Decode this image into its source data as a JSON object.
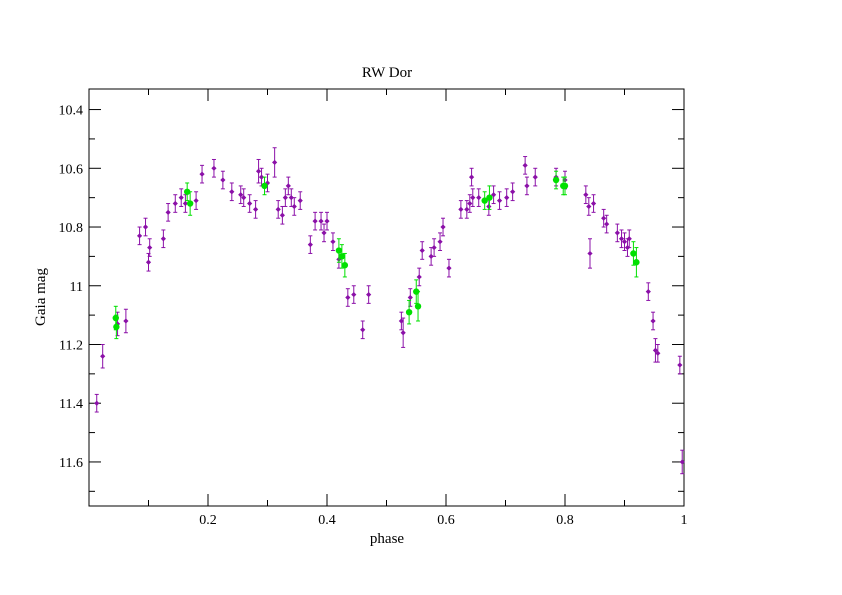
{
  "chart_data": {
    "type": "scatter",
    "title": "RW Dor",
    "xlabel": "phase",
    "ylabel": "Gaia mag",
    "xlim": [
      0.0,
      1.0
    ],
    "ylim": [
      11.75,
      10.33
    ],
    "y_inverted": true,
    "grid": false,
    "legend": "none",
    "x_major_ticks": [
      0.2,
      0.4,
      0.6,
      0.8,
      1
    ],
    "x_tick_labels": [
      "0.2",
      "0.4",
      "0.6",
      "0.8",
      "1"
    ],
    "x_minor_ticks": [
      0.1,
      0.3,
      0.5,
      0.7,
      0.9
    ],
    "y_major_ticks": [
      10.4,
      10.6,
      10.8,
      11.0,
      11.2,
      11.4,
      11.6
    ],
    "y_tick_labels": [
      "10.4",
      "10.6",
      "10.8",
      "11",
      "11.2",
      "11.4",
      "11.6"
    ],
    "y_minor_ticks": [
      10.5,
      10.7,
      10.9,
      11.1,
      11.3,
      11.5,
      11.7
    ],
    "series": [
      {
        "color": "#8b10a8",
        "marker": "diamond",
        "points": [
          [
            0.013,
            11.4,
            0.03
          ],
          [
            0.023,
            11.24,
            0.04
          ],
          [
            0.048,
            11.13,
            0.04
          ],
          [
            0.062,
            11.12,
            0.04
          ],
          [
            0.085,
            10.83,
            0.03
          ],
          [
            0.095,
            10.8,
            0.03
          ],
          [
            0.1,
            10.92,
            0.03
          ],
          [
            0.102,
            10.87,
            0.03
          ],
          [
            0.125,
            10.84,
            0.03
          ],
          [
            0.133,
            10.75,
            0.03
          ],
          [
            0.145,
            10.72,
            0.03
          ],
          [
            0.155,
            10.7,
            0.03
          ],
          [
            0.162,
            10.72,
            0.03
          ],
          [
            0.18,
            10.71,
            0.03
          ],
          [
            0.19,
            10.62,
            0.03
          ],
          [
            0.21,
            10.6,
            0.03
          ],
          [
            0.225,
            10.64,
            0.03
          ],
          [
            0.24,
            10.68,
            0.03
          ],
          [
            0.255,
            10.69,
            0.03
          ],
          [
            0.26,
            10.7,
            0.03
          ],
          [
            0.27,
            10.72,
            0.03
          ],
          [
            0.28,
            10.74,
            0.03
          ],
          [
            0.285,
            10.61,
            0.04
          ],
          [
            0.29,
            10.63,
            0.03
          ],
          [
            0.3,
            10.65,
            0.03
          ],
          [
            0.312,
            10.58,
            0.05
          ],
          [
            0.318,
            10.74,
            0.03
          ],
          [
            0.325,
            10.76,
            0.03
          ],
          [
            0.33,
            10.7,
            0.03
          ],
          [
            0.335,
            10.66,
            0.03
          ],
          [
            0.34,
            10.7,
            0.03
          ],
          [
            0.345,
            10.73,
            0.03
          ],
          [
            0.355,
            10.71,
            0.03
          ],
          [
            0.372,
            10.86,
            0.03
          ],
          [
            0.38,
            10.78,
            0.03
          ],
          [
            0.39,
            10.78,
            0.03
          ],
          [
            0.395,
            10.82,
            0.03
          ],
          [
            0.4,
            10.78,
            0.03
          ],
          [
            0.41,
            10.85,
            0.03
          ],
          [
            0.42,
            10.91,
            0.03
          ],
          [
            0.435,
            11.04,
            0.03
          ],
          [
            0.445,
            11.03,
            0.03
          ],
          [
            0.46,
            11.15,
            0.03
          ],
          [
            0.47,
            11.03,
            0.03
          ],
          [
            0.525,
            11.12,
            0.03
          ],
          [
            0.528,
            11.16,
            0.05
          ],
          [
            0.54,
            11.04,
            0.03
          ],
          [
            0.555,
            10.97,
            0.03
          ],
          [
            0.56,
            10.88,
            0.03
          ],
          [
            0.575,
            10.9,
            0.03
          ],
          [
            0.58,
            10.87,
            0.03
          ],
          [
            0.59,
            10.85,
            0.03
          ],
          [
            0.595,
            10.8,
            0.03
          ],
          [
            0.605,
            10.94,
            0.03
          ],
          [
            0.625,
            10.74,
            0.03
          ],
          [
            0.635,
            10.74,
            0.03
          ],
          [
            0.64,
            10.72,
            0.03
          ],
          [
            0.643,
            10.63,
            0.03
          ],
          [
            0.645,
            10.7,
            0.03
          ],
          [
            0.655,
            10.7,
            0.03
          ],
          [
            0.672,
            10.73,
            0.03
          ],
          [
            0.68,
            10.69,
            0.03
          ],
          [
            0.69,
            10.71,
            0.03
          ],
          [
            0.702,
            10.7,
            0.03
          ],
          [
            0.712,
            10.68,
            0.03
          ],
          [
            0.733,
            10.59,
            0.03
          ],
          [
            0.736,
            10.66,
            0.03
          ],
          [
            0.75,
            10.63,
            0.03
          ],
          [
            0.785,
            10.63,
            0.03
          ],
          [
            0.8,
            10.64,
            0.03
          ],
          [
            0.835,
            10.69,
            0.03
          ],
          [
            0.84,
            10.73,
            0.03
          ],
          [
            0.842,
            10.89,
            0.05
          ],
          [
            0.848,
            10.72,
            0.03
          ],
          [
            0.865,
            10.77,
            0.03
          ],
          [
            0.87,
            10.79,
            0.03
          ],
          [
            0.888,
            10.82,
            0.03
          ],
          [
            0.895,
            10.84,
            0.03
          ],
          [
            0.9,
            10.85,
            0.03
          ],
          [
            0.905,
            10.87,
            0.03
          ],
          [
            0.908,
            10.84,
            0.03
          ],
          [
            0.94,
            11.02,
            0.03
          ],
          [
            0.948,
            11.12,
            0.03
          ],
          [
            0.952,
            11.22,
            0.04
          ],
          [
            0.956,
            11.23,
            0.03
          ],
          [
            0.993,
            11.27,
            0.03
          ],
          [
            0.997,
            11.6,
            0.04
          ]
        ]
      },
      {
        "color": "#00e000",
        "marker": "circle",
        "points": [
          [
            0.045,
            11.11,
            0.04
          ],
          [
            0.046,
            11.14,
            0.04
          ],
          [
            0.165,
            10.68,
            0.03
          ],
          [
            0.17,
            10.72,
            0.04
          ],
          [
            0.295,
            10.66,
            0.03
          ],
          [
            0.42,
            10.88,
            0.04
          ],
          [
            0.425,
            10.9,
            0.04
          ],
          [
            0.43,
            10.93,
            0.04
          ],
          [
            0.538,
            11.09,
            0.04
          ],
          [
            0.55,
            11.02,
            0.04
          ],
          [
            0.553,
            11.07,
            0.05
          ],
          [
            0.665,
            10.71,
            0.03
          ],
          [
            0.673,
            10.7,
            0.04
          ],
          [
            0.785,
            10.64,
            0.03
          ],
          [
            0.797,
            10.66,
            0.03
          ],
          [
            0.8,
            10.66,
            0.03
          ],
          [
            0.915,
            10.89,
            0.04
          ],
          [
            0.92,
            10.92,
            0.05
          ]
        ]
      }
    ]
  }
}
